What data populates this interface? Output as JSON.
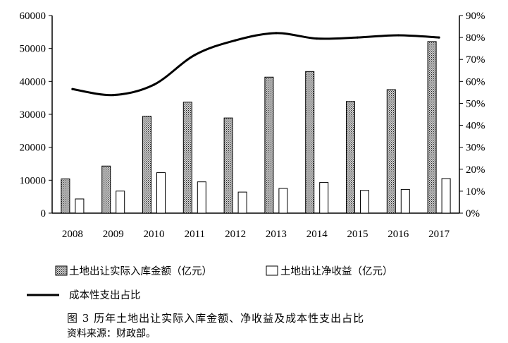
{
  "chart_data": {
    "type": "bar",
    "categories": [
      "2008",
      "2009",
      "2010",
      "2011",
      "2012",
      "2013",
      "2014",
      "2015",
      "2016",
      "2017"
    ],
    "series": [
      {
        "name": "土地出让实际入库金额（亿元）",
        "kind": "bar",
        "axis": "left",
        "pattern": "hatch",
        "values": [
          10400,
          14300,
          29400,
          33700,
          28900,
          41300,
          43000,
          33900,
          37500,
          52100
        ]
      },
      {
        "name": "土地出让净收益（亿元）",
        "kind": "bar",
        "axis": "left",
        "pattern": "white",
        "values": [
          4300,
          6700,
          12300,
          9500,
          6400,
          7500,
          9300,
          6900,
          7200,
          10500
        ]
      },
      {
        "name": "成本性支出占比",
        "kind": "line",
        "axis": "right",
        "values": [
          0.565,
          0.538,
          0.585,
          0.72,
          0.787,
          0.82,
          0.795,
          0.8,
          0.81,
          0.8
        ]
      }
    ],
    "left_axis": {
      "min": 0,
      "max": 60000,
      "ticks": [
        "0",
        "10000",
        "20000",
        "30000",
        "40000",
        "50000",
        "60000"
      ]
    },
    "right_axis": {
      "min": 0,
      "max": 0.9,
      "ticks": [
        "0%",
        "10%",
        "20%",
        "30%",
        "40%",
        "50%",
        "60%",
        "70%",
        "80%",
        "90%"
      ]
    },
    "grid": false,
    "legend_position": "bottom"
  },
  "caption": "图 3  历年土地出让实际入库金额、净收益及成本性支出占比",
  "source": "资料来源：财政部。"
}
